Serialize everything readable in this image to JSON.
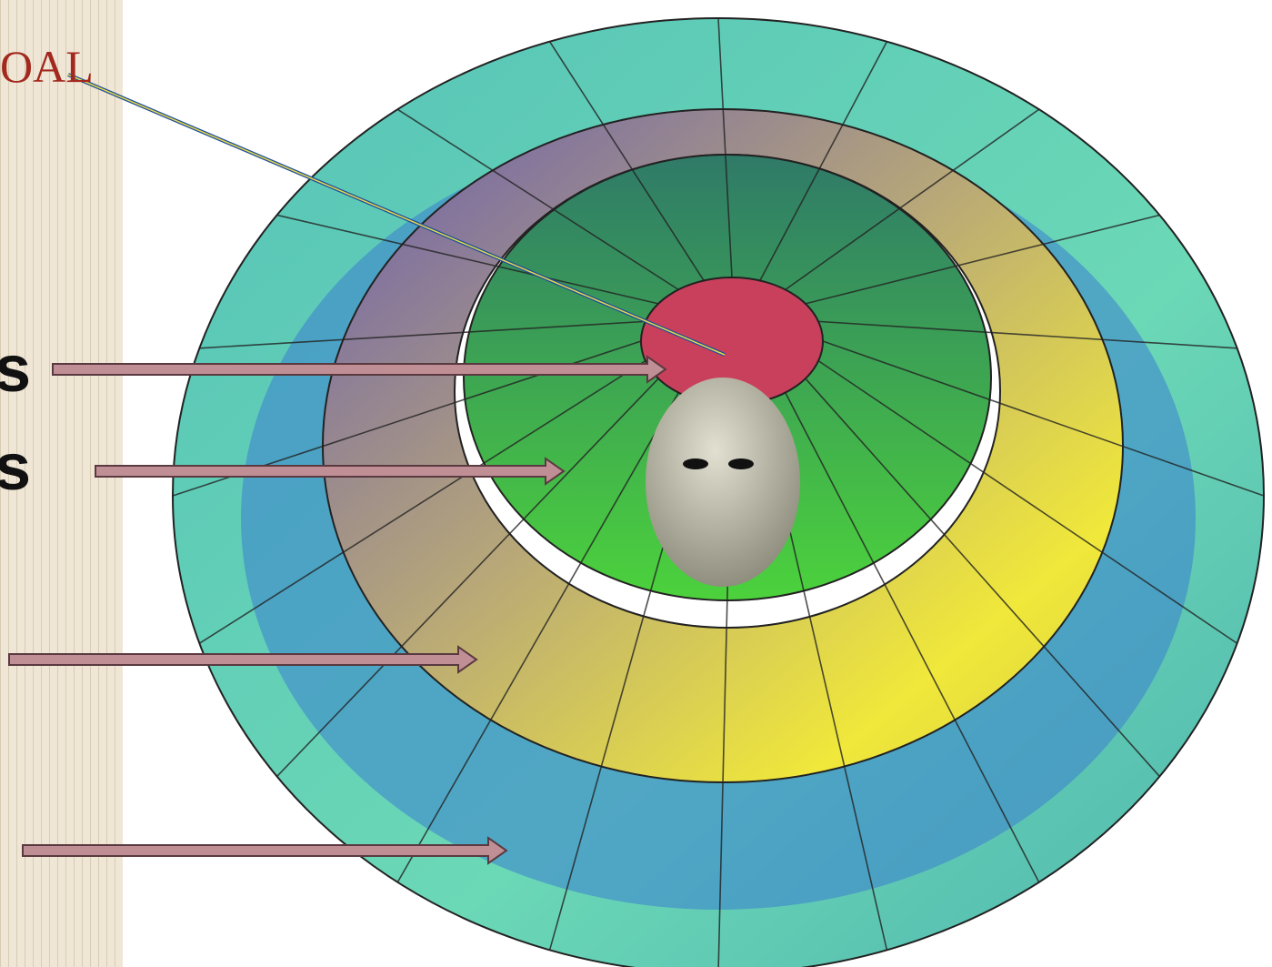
{
  "labels": {
    "goal": "OAL",
    "item1": "s",
    "item2": "s"
  }
}
